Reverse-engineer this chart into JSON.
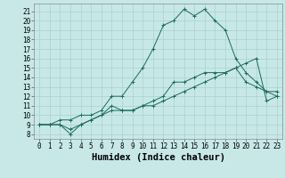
{
  "title": "",
  "xlabel": "Humidex (Indice chaleur)",
  "ylabel": "",
  "bg_color": "#c8e8e8",
  "line_color": "#1a6b5a",
  "grid_color": "#aed4d4",
  "x_ticks": [
    0,
    1,
    2,
    3,
    4,
    5,
    6,
    7,
    8,
    9,
    10,
    11,
    12,
    13,
    14,
    15,
    16,
    17,
    18,
    19,
    20,
    21,
    22,
    23
  ],
  "y_ticks": [
    8,
    9,
    10,
    11,
    12,
    13,
    14,
    15,
    16,
    17,
    18,
    19,
    20,
    21
  ],
  "ylim": [
    7.5,
    21.8
  ],
  "xlim": [
    -0.5,
    23.5
  ],
  "series1_x": [
    0,
    1,
    2,
    3,
    4,
    5,
    6,
    7,
    8,
    9,
    10,
    11,
    12,
    13,
    14,
    15,
    16,
    17,
    18,
    19,
    20,
    21,
    22,
    23
  ],
  "series1_y": [
    9.0,
    9.0,
    9.0,
    8.5,
    9.0,
    9.5,
    10.0,
    10.5,
    10.5,
    10.5,
    11.0,
    11.0,
    11.5,
    12.0,
    12.5,
    13.0,
    13.5,
    14.0,
    14.5,
    15.0,
    15.5,
    16.0,
    11.5,
    12.0
  ],
  "series2_x": [
    0,
    1,
    2,
    3,
    4,
    5,
    6,
    7,
    8,
    9,
    10,
    11,
    12,
    13,
    14,
    15,
    16,
    17,
    18,
    19,
    20,
    21,
    22,
    23
  ],
  "series2_y": [
    9.0,
    9.0,
    9.5,
    9.5,
    10.0,
    10.0,
    10.5,
    12.0,
    12.0,
    13.5,
    15.0,
    17.0,
    19.5,
    20.0,
    21.2,
    20.5,
    21.2,
    20.0,
    19.0,
    16.0,
    14.5,
    13.5,
    12.5,
    12.0
  ],
  "series3_x": [
    0,
    1,
    2,
    3,
    4,
    5,
    6,
    7,
    8,
    9,
    10,
    11,
    12,
    13,
    14,
    15,
    16,
    17,
    18,
    19,
    20,
    21,
    22,
    23
  ],
  "series3_y": [
    9.0,
    9.0,
    9.0,
    8.0,
    9.0,
    9.5,
    10.0,
    11.0,
    10.5,
    10.5,
    11.0,
    11.5,
    12.0,
    13.5,
    13.5,
    14.0,
    14.5,
    14.5,
    14.5,
    15.0,
    13.5,
    13.0,
    12.5,
    12.5
  ],
  "tick_fontsize": 5.5,
  "xlabel_fontsize": 7.5
}
